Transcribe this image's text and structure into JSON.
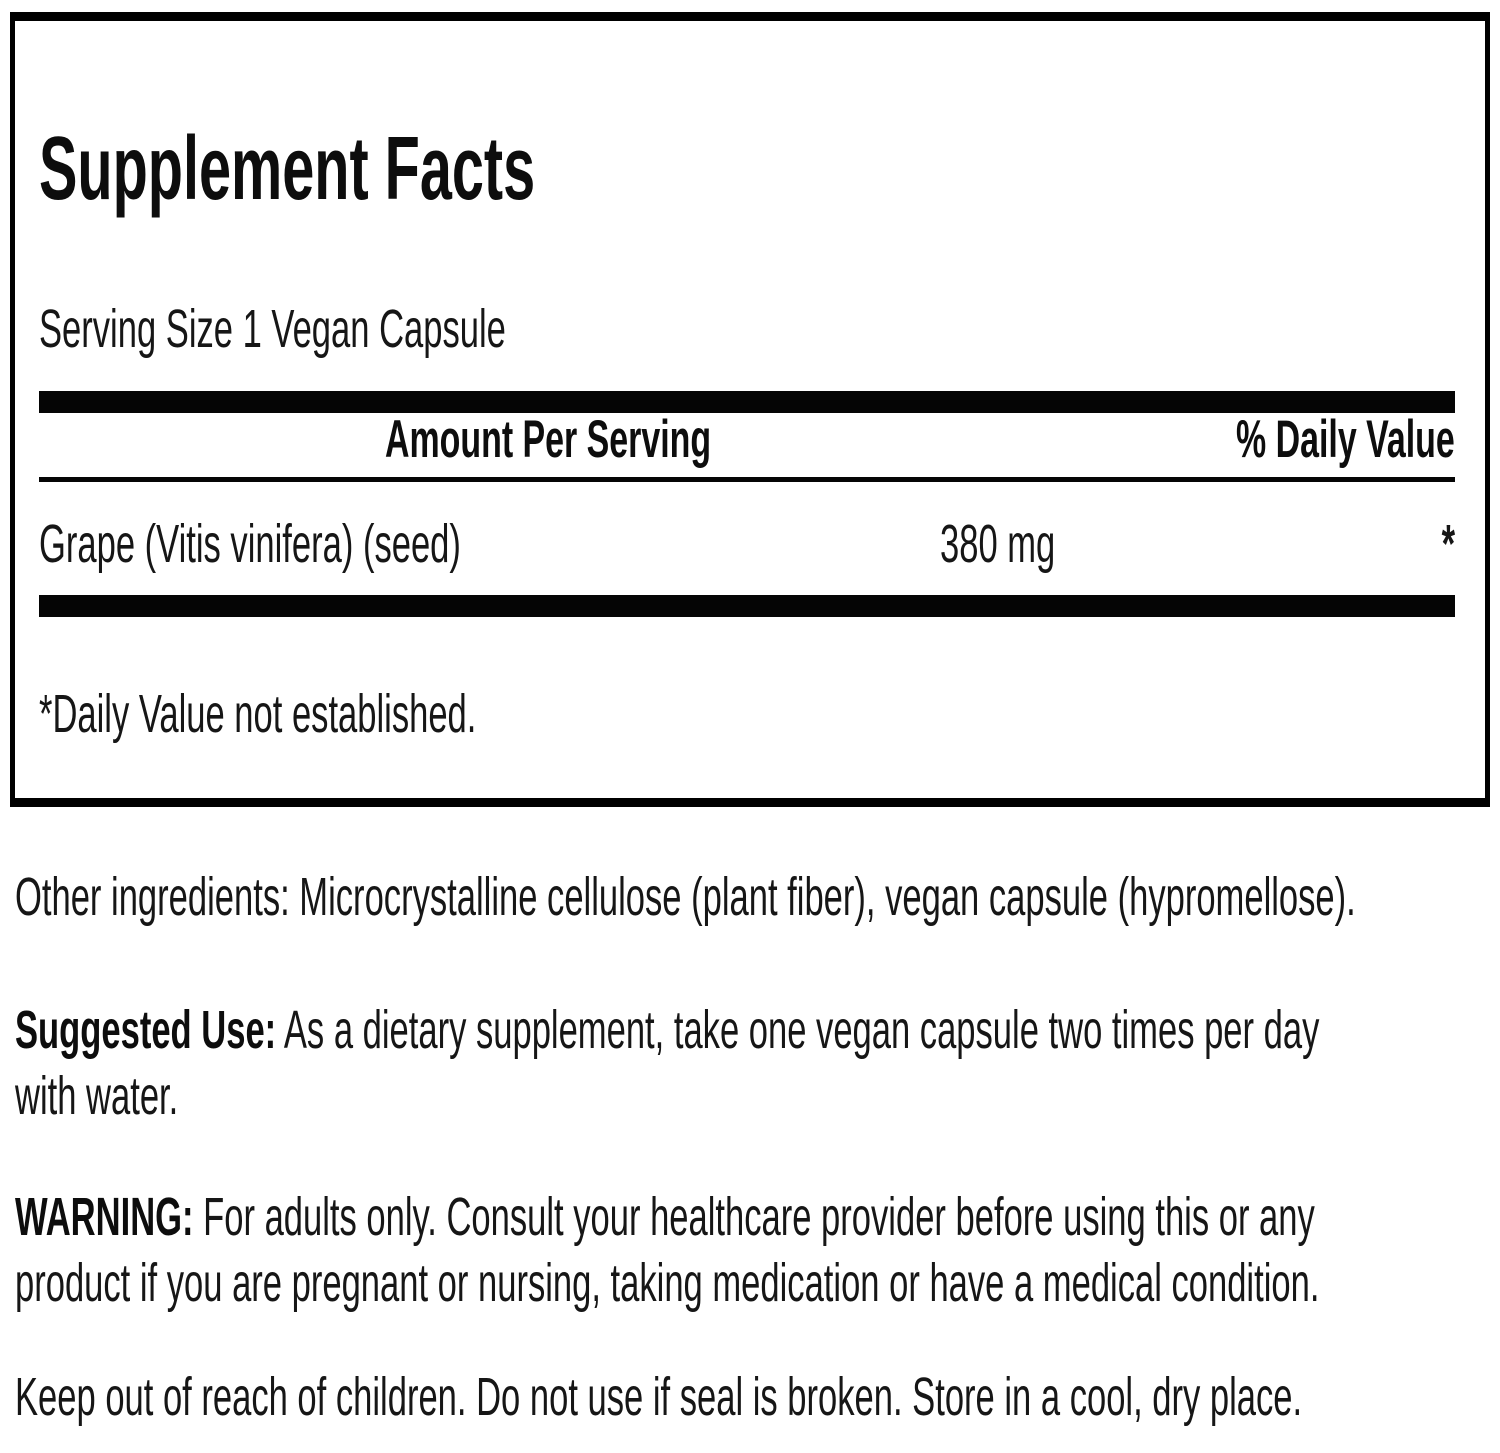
{
  "label": {
    "title": "Supplement Facts",
    "serving_size": "Serving Size 1 Vegan Capsule",
    "header": {
      "amount": "Amount Per Serving",
      "daily_value": "% Daily Value"
    },
    "ingredients": [
      {
        "name": "Grape (Vitis vinifera) (seed)",
        "amount": "380 mg",
        "daily_value": "*"
      }
    ],
    "footnote": "*Daily Value not established."
  },
  "sections": {
    "other_ingredients": {
      "line1": "Other ingredients: Microcrystalline cellulose (plant fiber), vegan capsule (hypromellose)."
    },
    "suggested_use": {
      "label": "Suggested Use:",
      "line1": "As a dietary supplement, take one vegan capsule two times per day",
      "line2": "with water."
    },
    "warning": {
      "label": "WARNING:",
      "line1": "For adults only. Consult your healthcare provider before using this or any",
      "line2": "product if you are pregnant or nursing, taking medication or have a medical condition."
    },
    "storage": {
      "line1": "Keep out of reach of children. Do not use if seal is broken. Store in a cool, dry place."
    }
  },
  "colors": {
    "text": "#161616",
    "rule": "#050505",
    "background": "#ffffff"
  }
}
